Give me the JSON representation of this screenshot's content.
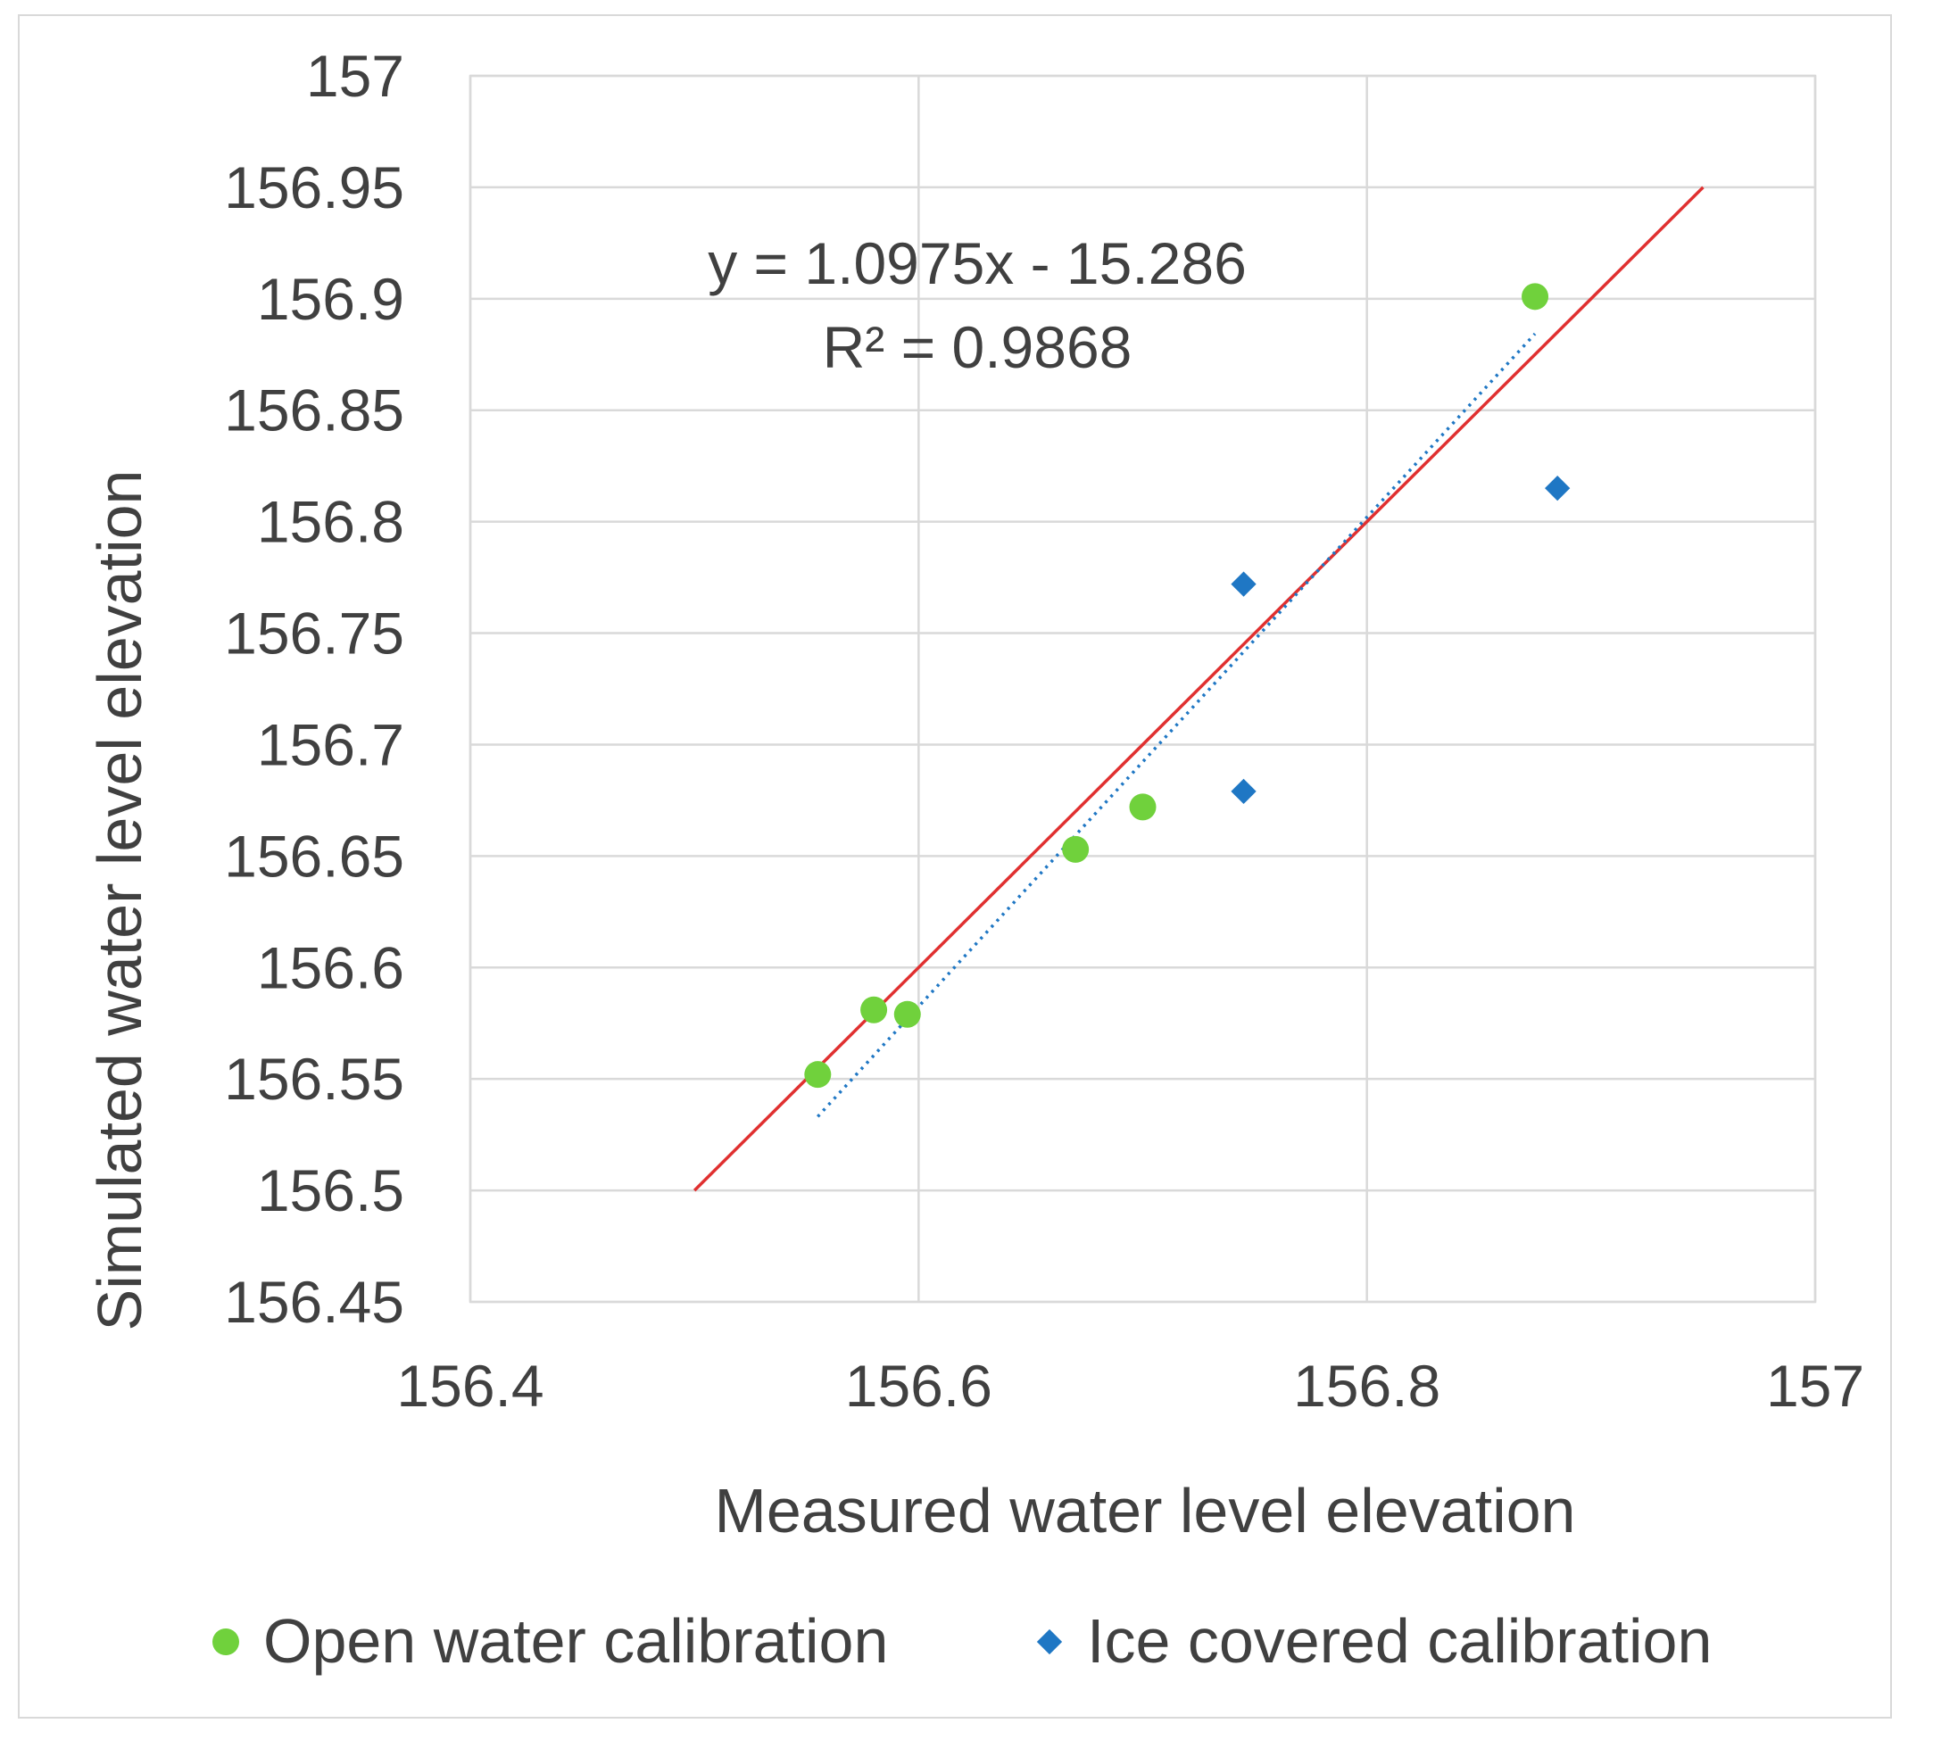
{
  "chart_data": {
    "type": "scatter",
    "title": "",
    "xlabel": "Measured water level elevation",
    "ylabel": "Simulated water level elevation",
    "xlim": [
      156.4,
      157
    ],
    "ylim": [
      156.45,
      157
    ],
    "x_ticks": [
      156.4,
      156.6,
      156.8,
      157
    ],
    "x_tick_labels": [
      "156.4",
      "156.6",
      "156.8",
      "157"
    ],
    "y_ticks": [
      156.45,
      156.5,
      156.55,
      156.6,
      156.65,
      156.7,
      156.75,
      156.8,
      156.85,
      156.9,
      156.95,
      157
    ],
    "y_tick_labels": [
      "156.45",
      "156.5",
      "156.55",
      "156.6",
      "156.65",
      "156.7",
      "156.75",
      "156.8",
      "156.85",
      "156.9",
      "156.95",
      "157"
    ],
    "grid": true,
    "legend_position": "bottom",
    "series": [
      {
        "name": "Open water calibration",
        "marker": "circle",
        "color": "#70d13c",
        "points": [
          {
            "x": 156.555,
            "y": 156.552
          },
          {
            "x": 156.58,
            "y": 156.581
          },
          {
            "x": 156.595,
            "y": 156.579
          },
          {
            "x": 156.67,
            "y": 156.653
          },
          {
            "x": 156.7,
            "y": 156.672
          },
          {
            "x": 156.875,
            "y": 156.901
          }
        ]
      },
      {
        "name": "Ice covered calibration",
        "marker": "diamond",
        "color": "#1f77c4",
        "points": [
          {
            "x": 156.745,
            "y": 156.772
          },
          {
            "x": 156.745,
            "y": 156.679
          },
          {
            "x": 156.885,
            "y": 156.815
          }
        ]
      }
    ],
    "reference_line": {
      "name": "1:1 line",
      "color": "#e03030",
      "x": [
        156.5,
        156.95
      ],
      "y": [
        156.5,
        156.95
      ]
    },
    "trendline": {
      "name": "Linear trendline (Open water calibration)",
      "color": "#1f77c4",
      "style": "dotted",
      "slope": 1.0975,
      "intercept": -15.286,
      "x_range": [
        156.555,
        156.875
      ]
    },
    "annotations": {
      "equation": "y = 1.0975x - 15.286",
      "r_squared": "R² = 0.9868"
    }
  }
}
